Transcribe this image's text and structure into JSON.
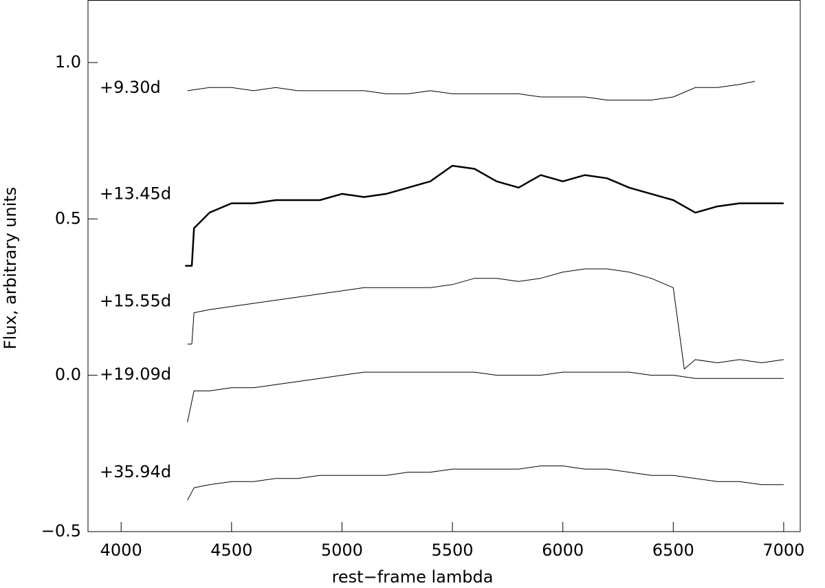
{
  "chart_data": {
    "type": "line",
    "xlabel": "rest−frame lambda",
    "ylabel": "Flux, arbitrary units",
    "xlim": [
      3850,
      7075
    ],
    "ylim": [
      -0.5,
      1.2
    ],
    "xticks": [
      4000,
      4500,
      5000,
      5500,
      6000,
      6500,
      7000
    ],
    "yticks": [
      {
        "value": -0.5,
        "label": "−0.5"
      },
      0.5,
      {
        "value": 0,
        "label": "0.0"
      },
      {
        "value": 1,
        "label": "1.0"
      }
    ],
    "series": [
      {
        "name": "+9.30d",
        "color": "#000000",
        "width": 1,
        "x": [
          4300,
          4400,
          4500,
          4600,
          4700,
          4800,
          4900,
          5000,
          5100,
          5200,
          5300,
          5400,
          5500,
          5600,
          5700,
          5800,
          5900,
          6000,
          6100,
          6200,
          6300,
          6400,
          6500,
          6600,
          6700,
          6800,
          6870
        ],
        "values": [
          0.91,
          0.92,
          0.92,
          0.91,
          0.92,
          0.91,
          0.91,
          0.91,
          0.91,
          0.9,
          0.9,
          0.91,
          0.9,
          0.9,
          0.9,
          0.9,
          0.89,
          0.89,
          0.89,
          0.88,
          0.88,
          0.88,
          0.89,
          0.92,
          0.92,
          0.93,
          0.94
        ]
      },
      {
        "name": "+13.45d",
        "color": "#000000",
        "width": 2.5,
        "x": [
          4290,
          4320,
          4330,
          4400,
          4500,
          4600,
          4700,
          4800,
          4900,
          5000,
          5100,
          5200,
          5300,
          5400,
          5500,
          5600,
          5700,
          5800,
          5900,
          6000,
          6100,
          6200,
          6300,
          6400,
          6500,
          6600,
          6700,
          6800,
          6900,
          7000
        ],
        "values": [
          0.35,
          0.35,
          0.47,
          0.52,
          0.55,
          0.55,
          0.56,
          0.56,
          0.56,
          0.58,
          0.57,
          0.58,
          0.6,
          0.62,
          0.67,
          0.66,
          0.62,
          0.6,
          0.64,
          0.62,
          0.64,
          0.63,
          0.6,
          0.58,
          0.56,
          0.52,
          0.54,
          0.55,
          0.55,
          0.55
        ]
      },
      {
        "name": "+15.55d",
        "color": "#000000",
        "width": 1,
        "x": [
          4300,
          4320,
          4330,
          4400,
          4500,
          4600,
          4700,
          4800,
          4900,
          5000,
          5100,
          5200,
          5300,
          5400,
          5500,
          5600,
          5700,
          5800,
          5900,
          6000,
          6100,
          6200,
          6300,
          6400,
          6500,
          6550,
          6600,
          6700,
          6800,
          6900,
          7000
        ],
        "values": [
          0.1,
          0.1,
          0.2,
          0.21,
          0.22,
          0.23,
          0.24,
          0.25,
          0.26,
          0.27,
          0.28,
          0.28,
          0.28,
          0.28,
          0.29,
          0.31,
          0.31,
          0.3,
          0.31,
          0.33,
          0.34,
          0.34,
          0.33,
          0.31,
          0.28,
          0.02,
          0.05,
          0.04,
          0.05,
          0.04,
          0.05
        ]
      },
      {
        "name": "+19.09d",
        "color": "#000000",
        "width": 1,
        "x": [
          4300,
          4330,
          4400,
          4500,
          4600,
          4700,
          4800,
          4900,
          5000,
          5100,
          5200,
          5300,
          5400,
          5500,
          5600,
          5700,
          5800,
          5900,
          6000,
          6100,
          6200,
          6300,
          6400,
          6500,
          6600,
          6700,
          6800,
          6900,
          7000
        ],
        "values": [
          -0.15,
          -0.05,
          -0.05,
          -0.04,
          -0.04,
          -0.03,
          -0.02,
          -0.01,
          0.0,
          0.01,
          0.01,
          0.01,
          0.01,
          0.01,
          0.01,
          0.0,
          0.0,
          0.0,
          0.01,
          0.01,
          0.01,
          0.01,
          0.0,
          0.0,
          -0.01,
          -0.01,
          -0.01,
          -0.01,
          -0.01
        ]
      },
      {
        "name": "+35.94d",
        "color": "#000000",
        "width": 1,
        "x": [
          4300,
          4330,
          4400,
          4500,
          4600,
          4700,
          4800,
          4900,
          5000,
          5100,
          5200,
          5300,
          5400,
          5500,
          5600,
          5700,
          5800,
          5900,
          6000,
          6100,
          6200,
          6300,
          6400,
          6500,
          6600,
          6700,
          6800,
          6900,
          7000
        ],
        "values": [
          -0.4,
          -0.36,
          -0.35,
          -0.34,
          -0.34,
          -0.33,
          -0.33,
          -0.32,
          -0.32,
          -0.32,
          -0.32,
          -0.31,
          -0.31,
          -0.3,
          -0.3,
          -0.3,
          -0.3,
          -0.29,
          -0.29,
          -0.3,
          -0.3,
          -0.31,
          -0.32,
          -0.32,
          -0.33,
          -0.34,
          -0.34,
          -0.35,
          -0.35
        ]
      }
    ]
  }
}
